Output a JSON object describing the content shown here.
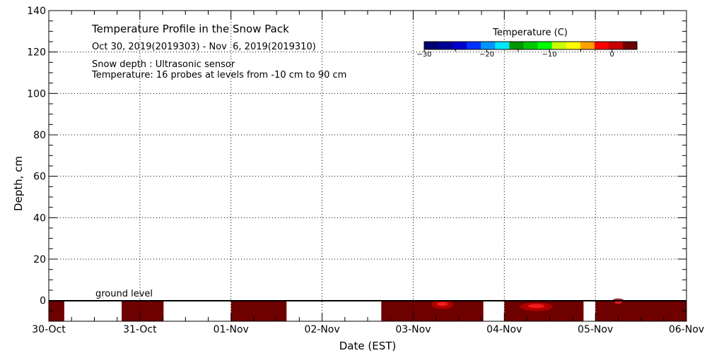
{
  "chart_data": {
    "type": "heatmap",
    "title": "Temperature Profile in the Snow Pack",
    "subtitle": "Oct 30, 2019(2019303) - Nov  6, 2019(2019310)",
    "notes": [
      "Snow depth : Ultrasonic sensor",
      "Temperature: 16 probes at levels from -10 cm to 90 cm"
    ],
    "xlabel": "Date (EST)",
    "ylabel": "Depth, cm",
    "x_ticks": [
      "30-Oct",
      "31-Oct",
      "01-Nov",
      "02-Nov",
      "03-Nov",
      "04-Nov",
      "05-Nov",
      "06-Nov"
    ],
    "xlim_days": [
      0,
      7
    ],
    "ylim": [
      -10,
      140
    ],
    "y_ticks": [
      0,
      20,
      40,
      60,
      80,
      100,
      120,
      140
    ],
    "grid": "dotted",
    "ground_level_label": "ground level",
    "ground_level_depth": 0,
    "colorbar": {
      "label": "Temperature (C)",
      "ticks": [
        -30,
        -20,
        -10,
        0
      ],
      "range": [
        -30,
        4
      ],
      "colors": [
        "#00006e",
        "#000096",
        "#0000c8",
        "#0032ff",
        "#0096ff",
        "#00e6ff",
        "#009600",
        "#00c800",
        "#00ff00",
        "#c8ff00",
        "#ffff00",
        "#ffa000",
        "#ff0000",
        "#c80000",
        "#6e0000"
      ]
    },
    "data_segments": [
      {
        "start_day": 0.0,
        "end_day": 0.17,
        "depth_top": 0,
        "depth_bottom": -10,
        "temperature": 4
      },
      {
        "start_day": 0.8,
        "end_day": 1.26,
        "depth_top": 0,
        "depth_bottom": -10,
        "temperature": 4
      },
      {
        "start_day": 2.0,
        "end_day": 2.61,
        "depth_top": 0,
        "depth_bottom": -10,
        "temperature": 4
      },
      {
        "start_day": 3.65,
        "end_day": 4.77,
        "depth_top": 0,
        "depth_bottom": -10,
        "temperature": 4
      },
      {
        "start_day": 5.0,
        "end_day": 5.87,
        "depth_top": 0,
        "depth_bottom": -10,
        "temperature": 4
      },
      {
        "start_day": 6.0,
        "end_day": 7.0,
        "depth_top": 0,
        "depth_bottom": -10,
        "temperature": 4
      }
    ],
    "warm_spots": [
      {
        "center_day": 4.32,
        "spread_day": 0.12,
        "depth": -2,
        "temperature": 1
      },
      {
        "center_day": 5.35,
        "spread_day": 0.18,
        "depth": -3,
        "temperature": 1
      },
      {
        "center_day": 6.25,
        "spread_day": 0.08,
        "depth": -1,
        "temperature": 2
      }
    ]
  }
}
